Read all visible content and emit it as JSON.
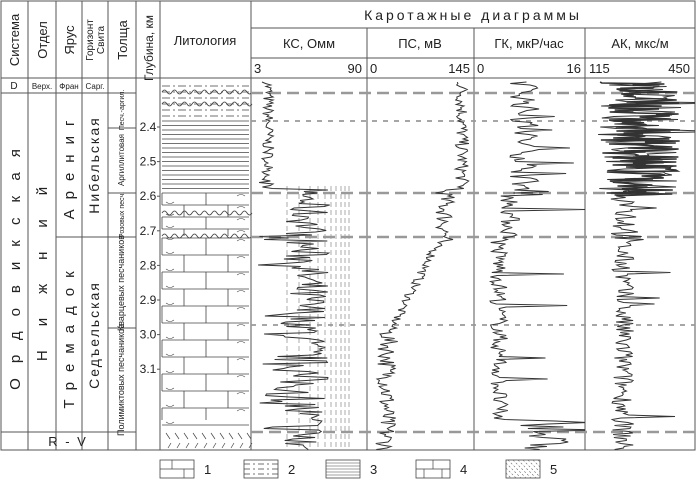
{
  "header": {
    "system": "Система",
    "department": "Отдел",
    "stage": "Ярус",
    "horizon": "Горизонт",
    "suite": "Свита",
    "thickness": "Толща",
    "depth": "Глубина, км",
    "lithology": "Литология",
    "logs_title": "Каротажные диаграммы"
  },
  "tracks": [
    {
      "name": "КС, Омм",
      "min": "3",
      "max": "90"
    },
    {
      "name": "ПС, мВ",
      "min": "0",
      "max": "145"
    },
    {
      "name": "ГК, мкР/час",
      "min": "0",
      "max": "16"
    },
    {
      "name": "АК, мкс/м",
      "min": "115",
      "max": "450"
    }
  ],
  "stratigraphy": {
    "d_row": {
      "system": "D",
      "department": "Верх.",
      "stage": "Фран",
      "horizon": "Сарг."
    },
    "system": "Ордовикская",
    "department": "Нижний",
    "stage_upper": "Арениг",
    "stage_lower": "Тремадок",
    "suite_upper": "Нибельская",
    "suite_lower": "Седъельская",
    "thickness_units": [
      "Песч.-аргил.",
      "Аргиллитовая",
      "Розовых песч.",
      "Кварцевых песчаников",
      "Полимиктовых песчаников"
    ],
    "basement": "R - V"
  },
  "depth_ticks": [
    "2.4",
    "2.5",
    "2.6",
    "2.7",
    "2.8",
    "2.9",
    "3.0",
    "3.1"
  ],
  "legend": [
    "1",
    "2",
    "3",
    "4",
    "5"
  ],
  "colors": {
    "line": "#333333",
    "grid": "#555555",
    "dash": "#999999"
  }
}
